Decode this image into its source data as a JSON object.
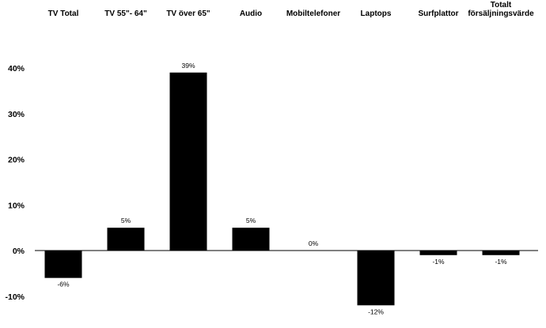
{
  "chart_data": {
    "type": "bar",
    "categories": [
      [
        "TV Total"
      ],
      [
        "TV 55\"- 64\""
      ],
      [
        "TV över 65\""
      ],
      [
        "Audio"
      ],
      [
        "Mobiltelefoner"
      ],
      [
        "Laptops"
      ],
      [
        "Surfplattor"
      ],
      [
        "Totalt",
        "försäljningsvärde"
      ]
    ],
    "values": [
      -6,
      5,
      39,
      5,
      0,
      -12,
      -1,
      -1
    ],
    "data_labels": [
      "-6%",
      "5%",
      "39%",
      "5%",
      "0%",
      "-12%",
      "-1%",
      "-1%"
    ],
    "y_ticks": [
      40,
      30,
      20,
      10,
      0,
      -10
    ],
    "y_tick_labels": [
      "40%",
      "30%",
      "20%",
      "10%",
      "0%",
      "-10%"
    ],
    "ylim": [
      -13,
      40
    ],
    "grid": false,
    "legend": "none",
    "bar_color": "#000000"
  }
}
